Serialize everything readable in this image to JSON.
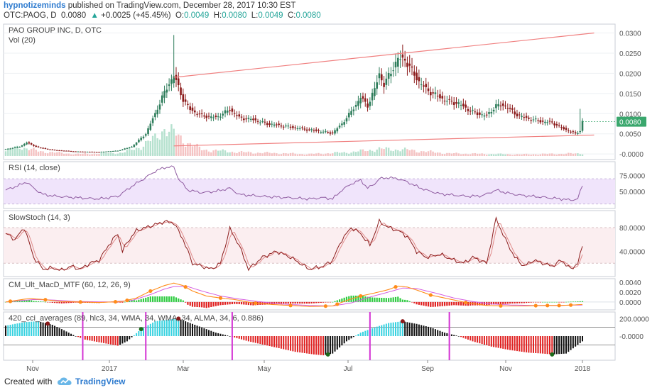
{
  "header": {
    "author": "hypnotizeminds",
    "published": "published on TradingView.com, December 28, 2017 10:30 EST",
    "symbol": "OTC:PAOG, D",
    "last": "0.0080",
    "change_arrow": "▲",
    "change": "+0.0025 (+45.45%)",
    "o_label": "O:",
    "o_value": "0.0049",
    "h_label": "H:",
    "h_value": "0.0080",
    "l_label": "L:",
    "l_value": "0.0049",
    "c_label": "C:",
    "c_value": "0.0080"
  },
  "footer": {
    "created_with": "Created with",
    "brand": "TradingView"
  },
  "colors": {
    "up": "#26a69a",
    "down": "#8b1a1a",
    "candle_up_fill": "#2e7d5b",
    "trendline": "#f08080",
    "rsi_band": "#f0e4fb",
    "rsi_line": "#8e5aa0",
    "stoch_k": "#8b1a1a",
    "stoch_d": "#e08a8a",
    "macd_line": "#ff8c1a",
    "macd_signal": "#d45de0",
    "hist_pos": "#2ecc40",
    "hist_neg": "#e02020",
    "cci_pos": "#37d2e0",
    "cci_neg": "#e02020",
    "cci_marker": "#d433d4",
    "last_price_tag": "#3aa76d"
  },
  "chart_data": [
    {
      "type": "candlestick",
      "title": "PAO GROUP INC, D, OTC",
      "volume_label": "Vol (20)",
      "x_ticks": [
        "Nov",
        "2017",
        "Mar",
        "May",
        "Jul",
        "Sep",
        "Nov",
        "2018"
      ],
      "y_ticks": [
        "0.0300",
        "0.0250",
        "0.0200",
        "0.0150",
        "0.0100",
        "0.0050",
        "-0.0000"
      ],
      "ylim": [
        -0.0005,
        0.0315
      ],
      "last_price_label": "0.0080",
      "price_anchors": [
        [
          0,
          0.0012
        ],
        [
          6,
          0.0018
        ],
        [
          9,
          0.0028
        ],
        [
          14,
          0.0016
        ],
        [
          20,
          0.001
        ],
        [
          30,
          0.0006
        ],
        [
          40,
          0.0005
        ],
        [
          48,
          0.0008
        ],
        [
          54,
          0.0018
        ],
        [
          60,
          0.005
        ],
        [
          64,
          0.01
        ],
        [
          67,
          0.014
        ],
        [
          70,
          0.0175
        ],
        [
          72,
          0.0195
        ],
        [
          74,
          0.0165
        ],
        [
          76,
          0.0135
        ],
        [
          79,
          0.011
        ],
        [
          84,
          0.0095
        ],
        [
          90,
          0.009
        ],
        [
          96,
          0.011
        ],
        [
          100,
          0.009
        ],
        [
          106,
          0.0085
        ],
        [
          112,
          0.0075
        ],
        [
          118,
          0.007
        ],
        [
          124,
          0.0065
        ],
        [
          130,
          0.006
        ],
        [
          136,
          0.0055
        ],
        [
          140,
          0.0052
        ],
        [
          144,
          0.0075
        ],
        [
          148,
          0.0105
        ],
        [
          152,
          0.014
        ],
        [
          155,
          0.012
        ],
        [
          158,
          0.016
        ],
        [
          160,
          0.02
        ],
        [
          162,
          0.017
        ],
        [
          165,
          0.0205
        ],
        [
          168,
          0.0235
        ],
        [
          171,
          0.0235
        ],
        [
          174,
          0.0205
        ],
        [
          177,
          0.018
        ],
        [
          180,
          0.016
        ],
        [
          183,
          0.015
        ],
        [
          186,
          0.014
        ],
        [
          190,
          0.013
        ],
        [
          194,
          0.0125
        ],
        [
          198,
          0.011
        ],
        [
          202,
          0.01
        ],
        [
          206,
          0.0095
        ],
        [
          210,
          0.012
        ],
        [
          214,
          0.012
        ],
        [
          218,
          0.01
        ],
        [
          222,
          0.009
        ],
        [
          226,
          0.0085
        ],
        [
          230,
          0.008
        ],
        [
          234,
          0.0078
        ],
        [
          238,
          0.0065
        ],
        [
          242,
          0.0055
        ],
        [
          244,
          0.005
        ],
        [
          246,
          0.0058
        ],
        [
          247,
          0.008
        ]
      ],
      "volume_anchors": [
        [
          0,
          0.15
        ],
        [
          6,
          0.3
        ],
        [
          14,
          0.15
        ],
        [
          30,
          0.06
        ],
        [
          50,
          0.1
        ],
        [
          58,
          0.3
        ],
        [
          64,
          0.55
        ],
        [
          68,
          0.9
        ],
        [
          72,
          0.7
        ],
        [
          76,
          0.5
        ],
        [
          84,
          0.2
        ],
        [
          100,
          0.12
        ],
        [
          130,
          0.06
        ],
        [
          148,
          0.12
        ],
        [
          160,
          0.22
        ],
        [
          170,
          0.2
        ],
        [
          190,
          0.08
        ],
        [
          220,
          0.05
        ],
        [
          247,
          0.08
        ]
      ],
      "spike_high": 0.0295,
      "late_high": 0.0112,
      "trendline_upper": {
        "from": [
          72,
          0.019
        ],
        "to": [
          252,
          0.03
        ]
      },
      "trendline_lower": {
        "from": [
          72,
          0.002
        ],
        "to": [
          252,
          0.0047
        ]
      }
    },
    {
      "type": "line",
      "title": "RSI (14, close)",
      "y_ticks": [
        "75.0000",
        "50.0000"
      ],
      "ylim": [
        25,
        95
      ],
      "band": [
        30,
        70
      ],
      "anchors": [
        [
          0,
          52
        ],
        [
          6,
          60
        ],
        [
          9,
          65
        ],
        [
          12,
          55
        ],
        [
          16,
          45
        ],
        [
          22,
          42
        ],
        [
          30,
          40
        ],
        [
          40,
          38
        ],
        [
          48,
          42
        ],
        [
          54,
          58
        ],
        [
          60,
          72
        ],
        [
          64,
          82
        ],
        [
          68,
          88
        ],
        [
          72,
          89
        ],
        [
          74,
          70
        ],
        [
          78,
          52
        ],
        [
          84,
          48
        ],
        [
          90,
          50
        ],
        [
          96,
          55
        ],
        [
          100,
          45
        ],
        [
          110,
          42
        ],
        [
          120,
          40
        ],
        [
          130,
          38
        ],
        [
          136,
          40
        ],
        [
          140,
          38
        ],
        [
          144,
          52
        ],
        [
          148,
          62
        ],
        [
          152,
          68
        ],
        [
          155,
          55
        ],
        [
          158,
          62
        ],
        [
          160,
          70
        ],
        [
          164,
          72
        ],
        [
          168,
          70
        ],
        [
          172,
          65
        ],
        [
          176,
          58
        ],
        [
          180,
          52
        ],
        [
          186,
          46
        ],
        [
          192,
          44
        ],
        [
          198,
          42
        ],
        [
          204,
          43
        ],
        [
          210,
          52
        ],
        [
          214,
          48
        ],
        [
          220,
          44
        ],
        [
          226,
          42
        ],
        [
          232,
          40
        ],
        [
          238,
          38
        ],
        [
          242,
          36
        ],
        [
          245,
          38
        ],
        [
          247,
          60
        ]
      ]
    },
    {
      "type": "line",
      "title": "SlowStoch (14, 3)",
      "y_ticks": [
        "80.0000",
        "40.0000"
      ],
      "ylim": [
        0,
        105
      ],
      "band": [
        20,
        80
      ],
      "k_anchors": [
        [
          0,
          70
        ],
        [
          4,
          60
        ],
        [
          8,
          80
        ],
        [
          12,
          30
        ],
        [
          16,
          10
        ],
        [
          20,
          12
        ],
        [
          24,
          8
        ],
        [
          28,
          15
        ],
        [
          32,
          10
        ],
        [
          36,
          20
        ],
        [
          40,
          25
        ],
        [
          44,
          50
        ],
        [
          48,
          70
        ],
        [
          50,
          40
        ],
        [
          52,
          55
        ],
        [
          56,
          75
        ],
        [
          60,
          80
        ],
        [
          64,
          85
        ],
        [
          68,
          90
        ],
        [
          72,
          88
        ],
        [
          76,
          60
        ],
        [
          80,
          20
        ],
        [
          84,
          15
        ],
        [
          88,
          10
        ],
        [
          92,
          20
        ],
        [
          96,
          78
        ],
        [
          100,
          50
        ],
        [
          104,
          10
        ],
        [
          110,
          30
        ],
        [
          116,
          40
        ],
        [
          122,
          30
        ],
        [
          130,
          10
        ],
        [
          136,
          15
        ],
        [
          140,
          25
        ],
        [
          144,
          60
        ],
        [
          148,
          80
        ],
        [
          152,
          70
        ],
        [
          156,
          50
        ],
        [
          160,
          90
        ],
        [
          164,
          80
        ],
        [
          168,
          75
        ],
        [
          172,
          65
        ],
        [
          176,
          40
        ],
        [
          180,
          30
        ],
        [
          186,
          35
        ],
        [
          192,
          25
        ],
        [
          196,
          20
        ],
        [
          200,
          30
        ],
        [
          206,
          20
        ],
        [
          210,
          95
        ],
        [
          214,
          60
        ],
        [
          218,
          30
        ],
        [
          222,
          15
        ],
        [
          226,
          25
        ],
        [
          230,
          20
        ],
        [
          234,
          15
        ],
        [
          238,
          25
        ],
        [
          242,
          10
        ],
        [
          245,
          20
        ],
        [
          247,
          48
        ]
      ]
    },
    {
      "type": "bar",
      "title": "CM_Ult_MacD_MTF (60, 12, 26, 9)",
      "y_ticks": [
        "0.0040",
        "0.0020",
        "0.0000"
      ],
      "ylim": [
        -0.0013,
        0.0044
      ],
      "macd_anchors": [
        [
          0,
          0.0
        ],
        [
          10,
          0.0007
        ],
        [
          16,
          0.0005
        ],
        [
          24,
          0.0001
        ],
        [
          40,
          -0.0001
        ],
        [
          50,
          0.0001
        ],
        [
          56,
          0.0008
        ],
        [
          62,
          0.0022
        ],
        [
          68,
          0.0033
        ],
        [
          72,
          0.0038
        ],
        [
          76,
          0.0033
        ],
        [
          80,
          0.0022
        ],
        [
          86,
          0.0012
        ],
        [
          92,
          0.0008
        ],
        [
          98,
          0.0005
        ],
        [
          106,
          -0.0002
        ],
        [
          114,
          -0.0005
        ],
        [
          122,
          -0.0007
        ],
        [
          130,
          -0.0009
        ],
        [
          140,
          -0.0008
        ],
        [
          146,
          0.0003
        ],
        [
          152,
          0.0012
        ],
        [
          158,
          0.0018
        ],
        [
          164,
          0.0025
        ],
        [
          168,
          0.0032
        ],
        [
          172,
          0.003
        ],
        [
          176,
          0.0024
        ],
        [
          182,
          0.0014
        ],
        [
          190,
          0.0006
        ],
        [
          198,
          -0.0002
        ],
        [
          206,
          -0.0007
        ],
        [
          214,
          -0.0008
        ],
        [
          222,
          -0.0008
        ],
        [
          230,
          -0.0007
        ],
        [
          238,
          -0.0007
        ],
        [
          247,
          -0.0005
        ]
      ],
      "signal_anchors": [
        [
          0,
          0.0
        ],
        [
          12,
          0.0005
        ],
        [
          20,
          0.0004
        ],
        [
          30,
          0.0001
        ],
        [
          44,
          0.0
        ],
        [
          54,
          0.0003
        ],
        [
          62,
          0.0015
        ],
        [
          68,
          0.0026
        ],
        [
          72,
          0.0031
        ],
        [
          78,
          0.0031
        ],
        [
          84,
          0.0022
        ],
        [
          92,
          0.0012
        ],
        [
          100,
          0.0006
        ],
        [
          108,
          0.0001
        ],
        [
          118,
          -0.0004
        ],
        [
          130,
          -0.0007
        ],
        [
          140,
          -0.0008
        ],
        [
          148,
          -0.0002
        ],
        [
          156,
          0.001
        ],
        [
          164,
          0.002
        ],
        [
          170,
          0.0028
        ],
        [
          176,
          0.0027
        ],
        [
          184,
          0.0018
        ],
        [
          192,
          0.0008
        ],
        [
          200,
          0.0001
        ],
        [
          208,
          -0.0004
        ],
        [
          216,
          -0.0006
        ],
        [
          226,
          -0.0007
        ],
        [
          236,
          -0.0007
        ],
        [
          247,
          -0.0006
        ]
      ]
    },
    {
      "type": "bar",
      "title": "420_cci_averages (89, hlc3, 34, WMA, 34, WMA, 34, ALMA, 34, 6, 0.886)",
      "y_ticks": [
        "200.0000",
        "-0.0000"
      ],
      "ylim": [
        -260,
        260
      ],
      "ref_lines": [
        100,
        -100
      ],
      "anchors": [
        [
          0,
          120
        ],
        [
          8,
          160
        ],
        [
          14,
          170
        ],
        [
          20,
          130
        ],
        [
          24,
          80
        ],
        [
          30,
          0
        ],
        [
          34,
          -40
        ],
        [
          42,
          -80
        ],
        [
          48,
          -110
        ],
        [
          52,
          -60
        ],
        [
          58,
          80
        ],
        [
          64,
          170
        ],
        [
          70,
          190
        ],
        [
          74,
          200
        ],
        [
          78,
          160
        ],
        [
          84,
          100
        ],
        [
          90,
          40
        ],
        [
          96,
          0
        ],
        [
          104,
          -60
        ],
        [
          114,
          -120
        ],
        [
          124,
          -180
        ],
        [
          132,
          -210
        ],
        [
          136,
          -220
        ],
        [
          140,
          -200
        ],
        [
          146,
          -60
        ],
        [
          152,
          40
        ],
        [
          158,
          100
        ],
        [
          164,
          150
        ],
        [
          170,
          170
        ],
        [
          176,
          140
        ],
        [
          182,
          100
        ],
        [
          188,
          40
        ],
        [
          194,
          0
        ],
        [
          200,
          -60
        ],
        [
          208,
          -120
        ],
        [
          216,
          -160
        ],
        [
          224,
          -190
        ],
        [
          230,
          -200
        ],
        [
          234,
          -210
        ],
        [
          240,
          -200
        ],
        [
          247,
          -60
        ]
      ],
      "vertical_markers": [
        33,
        60,
        97,
        156,
        190
      ]
    }
  ]
}
